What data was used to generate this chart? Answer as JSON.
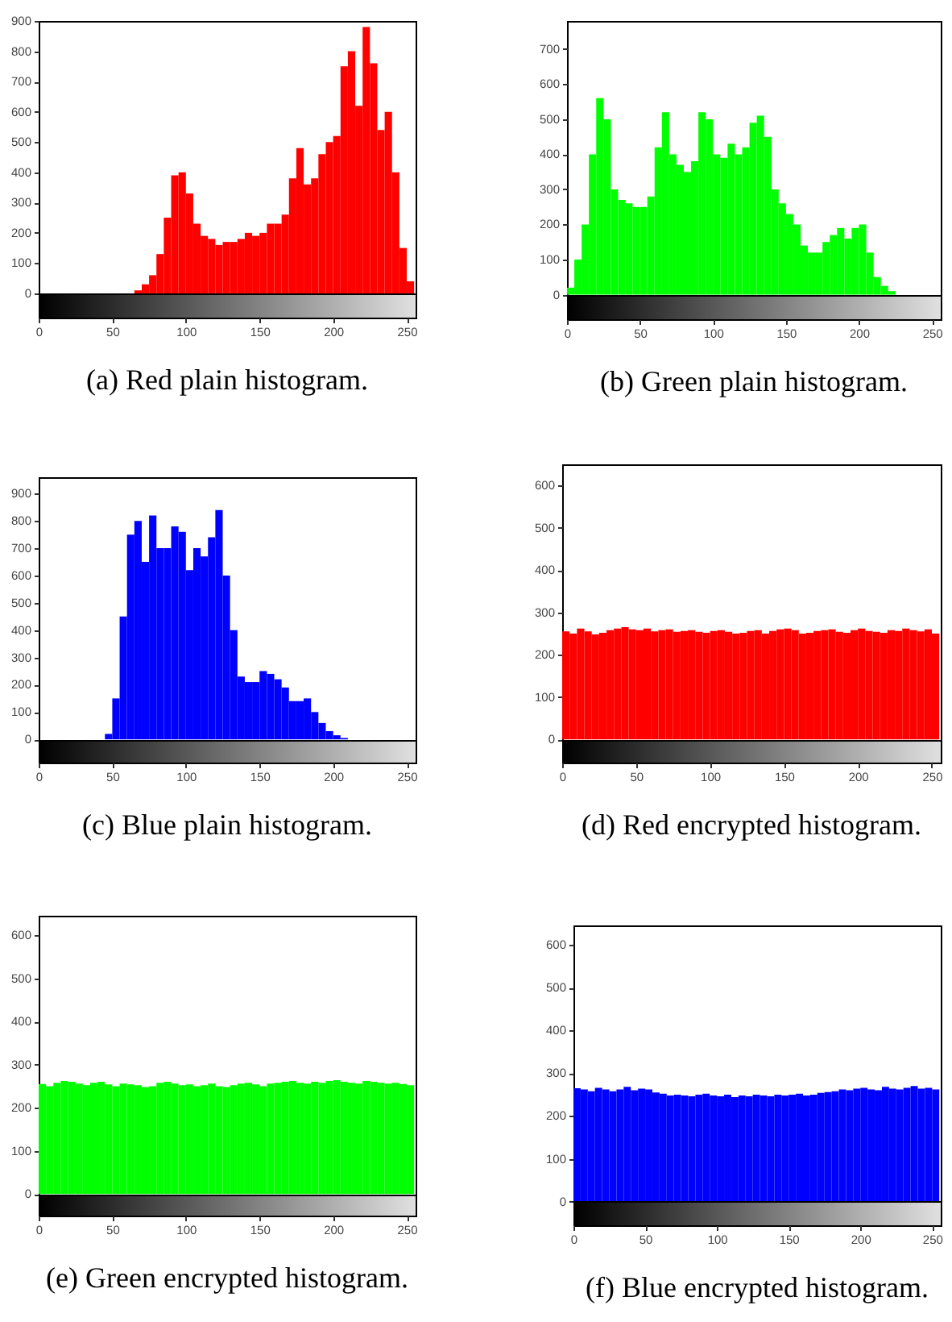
{
  "chart_data": [
    {
      "type": "histogram",
      "title": "(a) Red plain histogram.",
      "color": "#ff0000",
      "xlim": [
        0,
        256
      ],
      "xticks": [
        0,
        50,
        100,
        150,
        200,
        250
      ],
      "ylim": [
        -80,
        900
      ],
      "yticks": [
        0,
        100,
        200,
        300,
        400,
        500,
        600,
        700,
        800,
        900
      ],
      "bins": [
        0,
        5,
        10,
        15,
        20,
        25,
        30,
        35,
        40,
        45,
        50,
        55,
        60,
        65,
        70,
        75,
        80,
        85,
        90,
        95,
        100,
        105,
        110,
        115,
        120,
        125,
        130,
        135,
        140,
        145,
        150,
        155,
        160,
        165,
        170,
        175,
        180,
        185,
        190,
        195,
        200,
        205,
        210,
        215,
        220,
        225,
        230,
        235,
        240,
        245,
        250,
        255
      ],
      "values": [
        0,
        0,
        0,
        0,
        0,
        0,
        0,
        0,
        0,
        0,
        0,
        0,
        0,
        10,
        30,
        60,
        130,
        250,
        390,
        400,
        330,
        230,
        190,
        180,
        160,
        170,
        170,
        180,
        200,
        190,
        200,
        230,
        230,
        260,
        380,
        480,
        360,
        380,
        460,
        500,
        520,
        750,
        800,
        620,
        880,
        760,
        540,
        600,
        400,
        150,
        40
      ]
    },
    {
      "type": "histogram",
      "title": "(b) Green plain histogram.",
      "color": "#00ff00",
      "xlim": [
        0,
        256
      ],
      "xticks": [
        0,
        50,
        100,
        150,
        200,
        250
      ],
      "ylim": [
        -70,
        780
      ],
      "yticks": [
        0,
        100,
        200,
        300,
        400,
        500,
        600,
        700
      ],
      "bins": [
        0,
        5,
        10,
        15,
        20,
        25,
        30,
        35,
        40,
        45,
        50,
        55,
        60,
        65,
        70,
        75,
        80,
        85,
        90,
        95,
        100,
        105,
        110,
        115,
        120,
        125,
        130,
        135,
        140,
        145,
        150,
        155,
        160,
        165,
        170,
        175,
        180,
        185,
        190,
        195,
        200,
        205,
        210,
        215,
        220,
        225,
        230,
        235,
        240,
        245,
        250,
        255
      ],
      "values": [
        20,
        100,
        200,
        400,
        560,
        500,
        300,
        270,
        260,
        250,
        250,
        280,
        420,
        520,
        400,
        370,
        350,
        380,
        520,
        500,
        400,
        390,
        430,
        400,
        420,
        490,
        510,
        450,
        300,
        260,
        230,
        200,
        140,
        120,
        120,
        150,
        170,
        190,
        160,
        190,
        200,
        120,
        50,
        25,
        10,
        0,
        0,
        0,
        0,
        0,
        0
      ]
    },
    {
      "type": "histogram",
      "title": "(c) Blue plain histogram.",
      "color": "#0000ff",
      "xlim": [
        0,
        256
      ],
      "xticks": [
        0,
        50,
        100,
        150,
        200,
        250
      ],
      "ylim": [
        -85,
        960
      ],
      "yticks": [
        0,
        100,
        200,
        300,
        400,
        500,
        600,
        700,
        800,
        900
      ],
      "bins": [
        0,
        5,
        10,
        15,
        20,
        25,
        30,
        35,
        40,
        45,
        50,
        55,
        60,
        65,
        70,
        75,
        80,
        85,
        90,
        95,
        100,
        105,
        110,
        115,
        120,
        125,
        130,
        135,
        140,
        145,
        150,
        155,
        160,
        165,
        170,
        175,
        180,
        185,
        190,
        195,
        200,
        205,
        210,
        215,
        220,
        225,
        230,
        235,
        240,
        245,
        250,
        255
      ],
      "values": [
        0,
        0,
        0,
        0,
        0,
        0,
        0,
        0,
        0,
        20,
        150,
        450,
        750,
        800,
        650,
        820,
        700,
        700,
        780,
        760,
        620,
        700,
        670,
        740,
        840,
        600,
        400,
        230,
        210,
        210,
        250,
        240,
        220,
        190,
        140,
        140,
        150,
        100,
        60,
        30,
        15,
        5,
        0,
        0,
        0,
        0,
        0,
        0,
        0,
        0,
        0
      ]
    },
    {
      "type": "histogram",
      "title": "(d) Red encrypted histogram.",
      "color": "#ff0000",
      "xlim": [
        0,
        256
      ],
      "xticks": [
        0,
        50,
        100,
        150,
        200,
        250
      ],
      "ylim": [
        -55,
        650
      ],
      "yticks": [
        0,
        100,
        200,
        300,
        400,
        500,
        600
      ],
      "bins": [
        0,
        5,
        10,
        15,
        20,
        25,
        30,
        35,
        40,
        45,
        50,
        55,
        60,
        65,
        70,
        75,
        80,
        85,
        90,
        95,
        100,
        105,
        110,
        115,
        120,
        125,
        130,
        135,
        140,
        145,
        150,
        155,
        160,
        165,
        170,
        175,
        180,
        185,
        190,
        195,
        200,
        205,
        210,
        215,
        220,
        225,
        230,
        235,
        240,
        245,
        250,
        255
      ],
      "values": [
        255,
        250,
        262,
        255,
        248,
        252,
        258,
        262,
        265,
        260,
        258,
        262,
        255,
        258,
        260,
        254,
        256,
        258,
        254,
        252,
        256,
        258,
        254,
        250,
        252,
        256,
        258,
        250,
        256,
        260,
        262,
        258,
        250,
        252,
        256,
        258,
        260,
        254,
        252,
        258,
        262,
        256,
        254,
        252,
        258,
        256,
        262,
        258,
        255,
        260,
        250
      ]
    },
    {
      "type": "histogram",
      "title": "(e) Green encrypted histogram.",
      "color": "#00ff00",
      "xlim": [
        0,
        256
      ],
      "xticks": [
        0,
        50,
        100,
        150,
        200,
        250
      ],
      "ylim": [
        -50,
        645
      ],
      "yticks": [
        0,
        100,
        200,
        300,
        400,
        500,
        600
      ],
      "bins": [
        0,
        5,
        10,
        15,
        20,
        25,
        30,
        35,
        40,
        45,
        50,
        55,
        60,
        65,
        70,
        75,
        80,
        85,
        90,
        95,
        100,
        105,
        110,
        115,
        120,
        125,
        130,
        135,
        140,
        145,
        150,
        155,
        160,
        165,
        170,
        175,
        180,
        185,
        190,
        195,
        200,
        205,
        210,
        215,
        220,
        225,
        230,
        235,
        240,
        245,
        250,
        255
      ],
      "values": [
        255,
        250,
        258,
        262,
        260,
        256,
        252,
        258,
        260,
        254,
        250,
        256,
        254,
        252,
        248,
        250,
        258,
        260,
        256,
        252,
        254,
        250,
        252,
        256,
        250,
        248,
        252,
        256,
        258,
        254,
        250,
        256,
        258,
        260,
        262,
        258,
        256,
        260,
        258,
        262,
        264,
        260,
        258,
        256,
        262,
        260,
        258,
        256,
        258,
        255,
        252
      ]
    },
    {
      "type": "histogram",
      "title": "(f) Blue encrypted histogram.",
      "color": "#0000ff",
      "xlim": [
        0,
        256
      ],
      "xticks": [
        0,
        50,
        100,
        150,
        200,
        250
      ],
      "ylim": [
        -55,
        645
      ],
      "yticks": [
        0,
        100,
        200,
        300,
        400,
        500,
        600
      ],
      "bins": [
        0,
        5,
        10,
        15,
        20,
        25,
        30,
        35,
        40,
        45,
        50,
        55,
        60,
        65,
        70,
        75,
        80,
        85,
        90,
        95,
        100,
        105,
        110,
        115,
        120,
        125,
        130,
        135,
        140,
        145,
        150,
        155,
        160,
        165,
        170,
        175,
        180,
        185,
        190,
        195,
        200,
        205,
        210,
        215,
        220,
        225,
        230,
        235,
        240,
        245,
        250,
        255
      ],
      "values": [
        265,
        262,
        258,
        266,
        262,
        258,
        262,
        268,
        260,
        264,
        262,
        255,
        252,
        248,
        250,
        248,
        246,
        250,
        252,
        248,
        246,
        250,
        244,
        248,
        246,
        250,
        248,
        246,
        250,
        248,
        250,
        252,
        248,
        250,
        254,
        256,
        258,
        262,
        260,
        264,
        266,
        262,
        260,
        268,
        264,
        262,
        266,
        270,
        264,
        266,
        262
      ]
    }
  ]
}
